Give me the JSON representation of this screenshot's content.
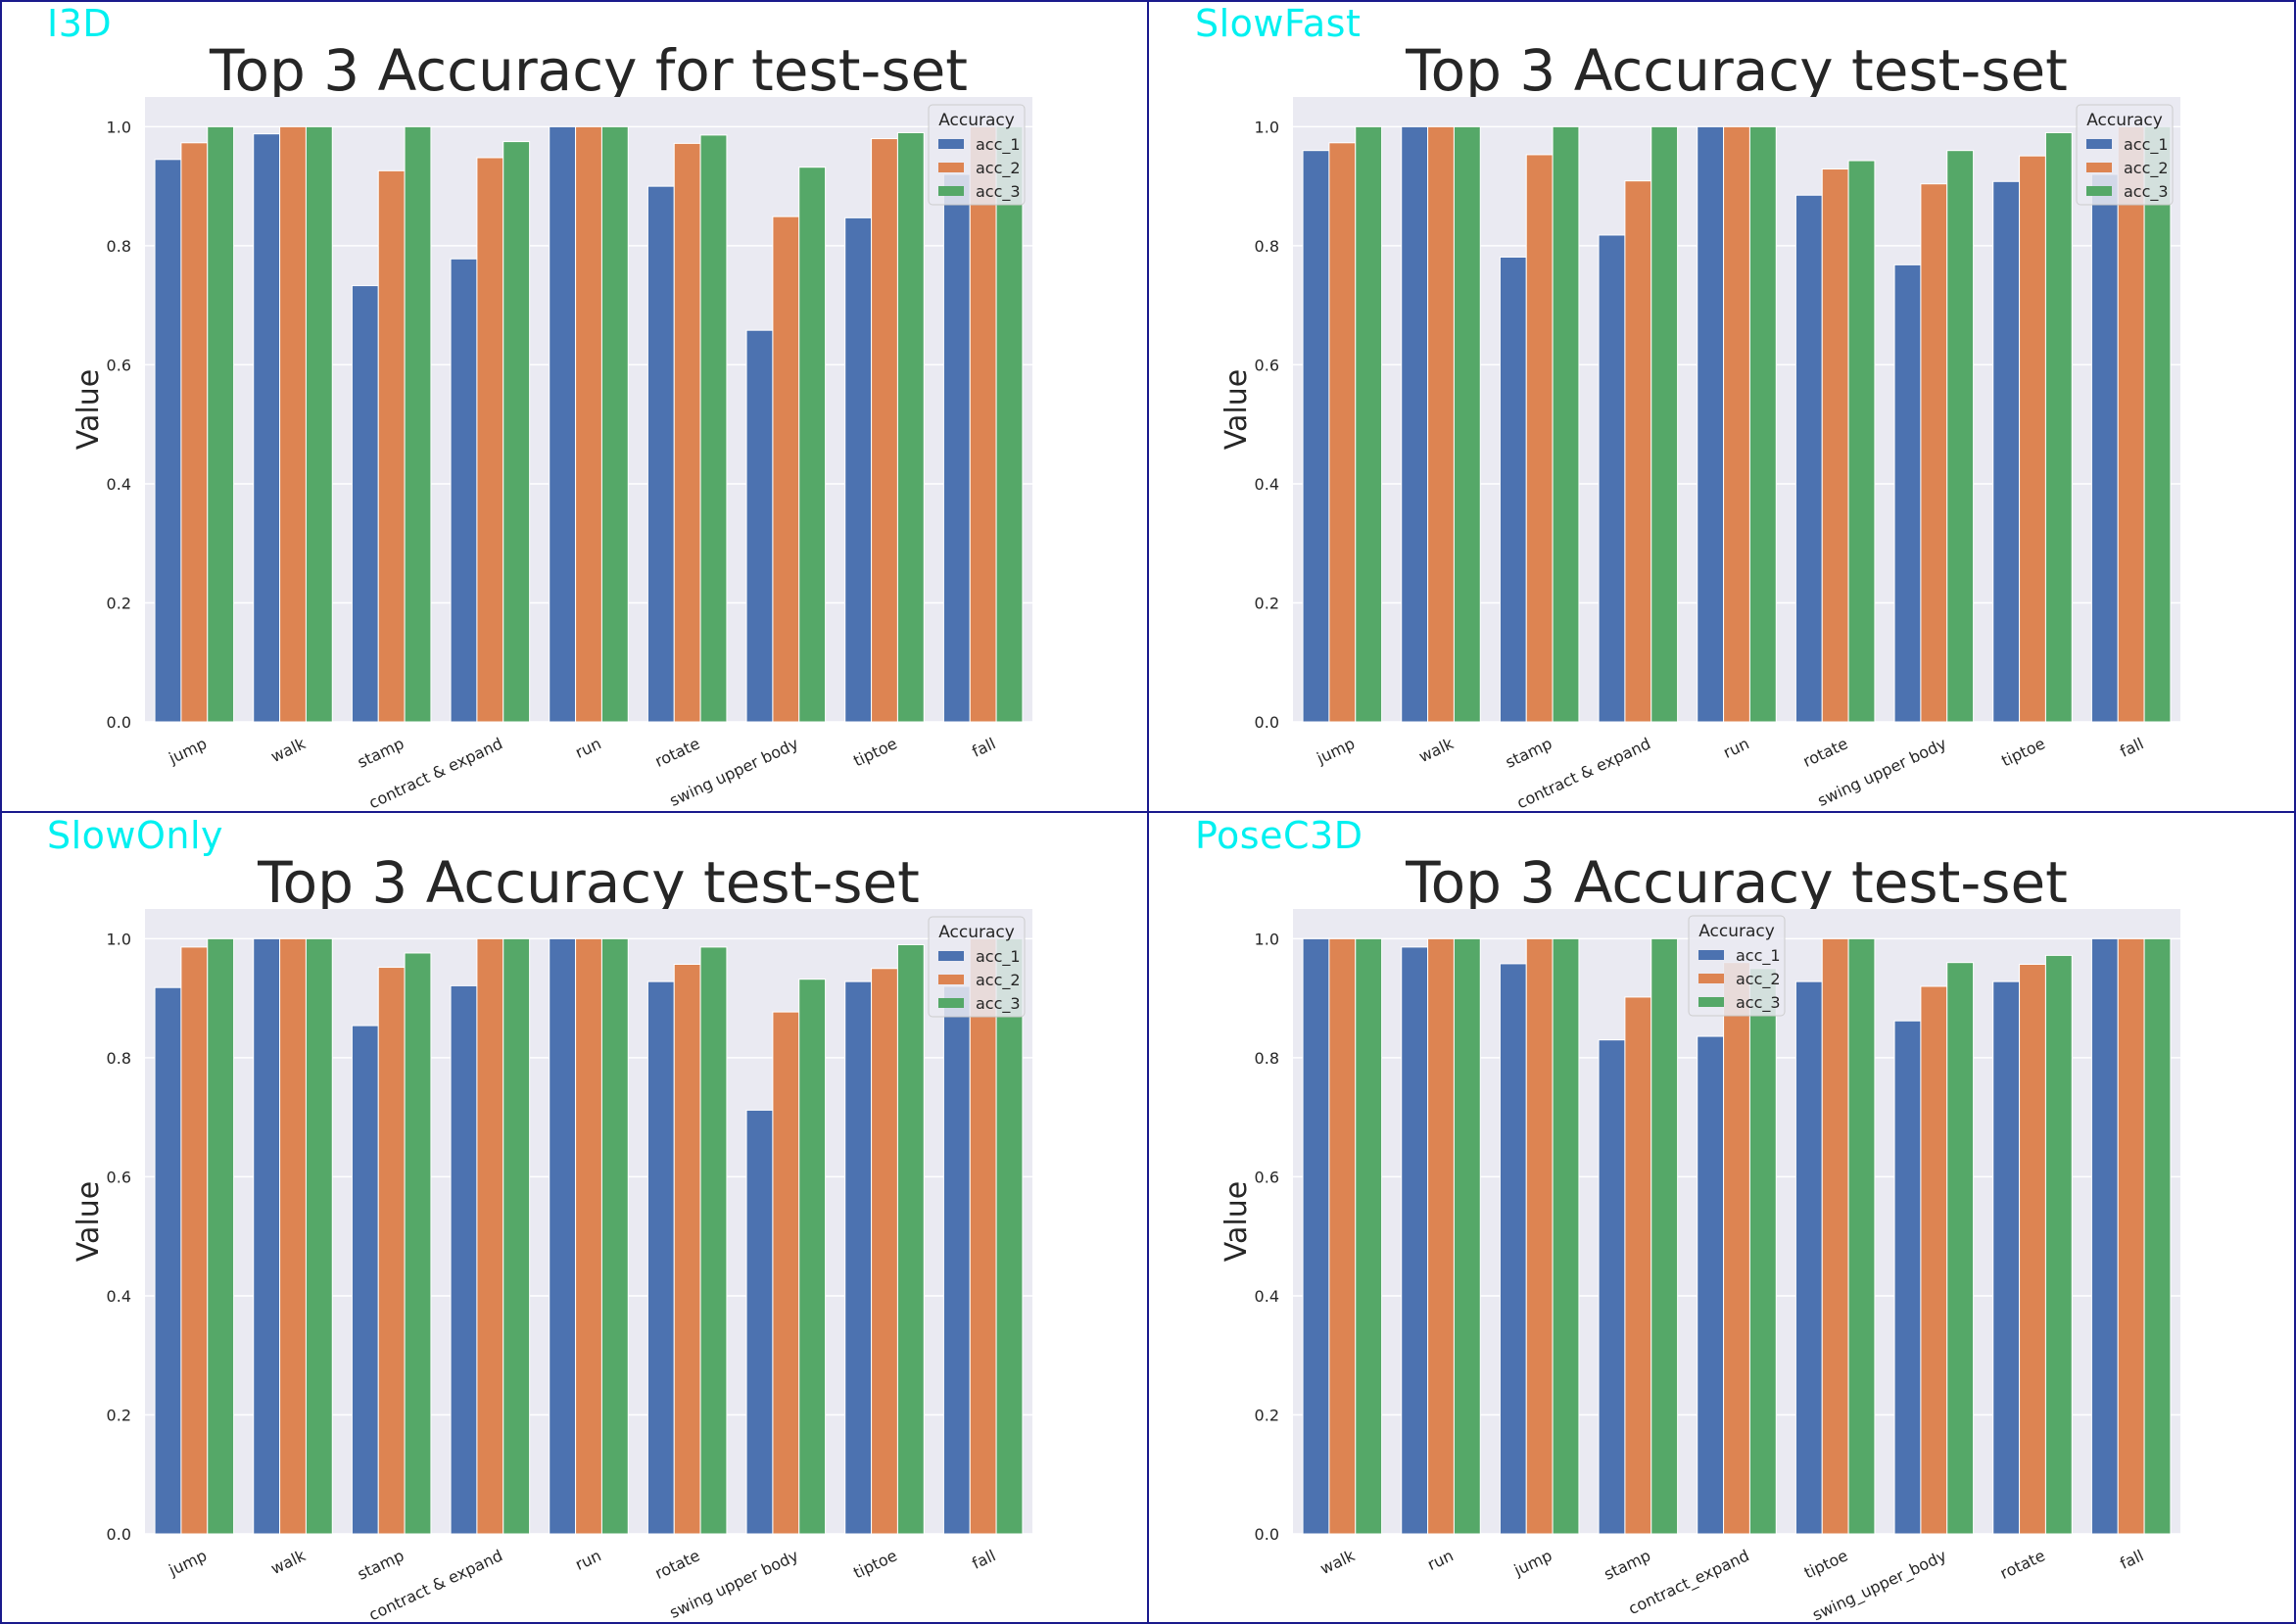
{
  "colors": {
    "tag": "#00f0f0",
    "plot_bg": "#eaeaf2",
    "grid": "#ffffff",
    "divider": "#1a1a8c",
    "series": [
      "#4c72b0",
      "#dd8452",
      "#55a868"
    ]
  },
  "panels": [
    {
      "tag": "I3D",
      "chart_data": {
        "type": "bar",
        "title": "Top 3 Accuracy for test-set",
        "xlabel": "",
        "ylabel": "Value",
        "ylim": [
          0,
          1.05
        ],
        "yticks": [
          "0.0",
          "0.2",
          "0.4",
          "0.6",
          "0.8",
          "1.0"
        ],
        "grid": true,
        "legend": {
          "title": "Accuracy",
          "placement": "top-right"
        },
        "categories": [
          "jump",
          "walk",
          "stamp",
          "contract & expand",
          "run",
          "rotate",
          "swing upper body",
          "tiptoe",
          "fall"
        ],
        "series": [
          {
            "name": "acc_1",
            "values": [
              0.945,
              0.988,
              0.733,
              0.778,
              1.0,
              0.9,
              0.658,
              0.847,
              0.92
            ]
          },
          {
            "name": "acc_2",
            "values": [
              0.973,
              1.0,
              0.926,
              0.948,
              1.0,
              0.972,
              0.849,
              0.98,
              1.0
            ]
          },
          {
            "name": "acc_3",
            "values": [
              1.0,
              1.0,
              1.0,
              0.975,
              1.0,
              0.986,
              0.932,
              0.99,
              1.0
            ]
          }
        ]
      }
    },
    {
      "tag": "SlowFast",
      "chart_data": {
        "type": "bar",
        "title": "Top 3 Accuracy test-set",
        "xlabel": "",
        "ylabel": "Value",
        "ylim": [
          0,
          1.05
        ],
        "yticks": [
          "0.0",
          "0.2",
          "0.4",
          "0.6",
          "0.8",
          "1.0"
        ],
        "grid": true,
        "legend": {
          "title": "Accuracy",
          "placement": "top-right"
        },
        "categories": [
          "jump",
          "walk",
          "stamp",
          "contract & expand",
          "run",
          "rotate",
          "swing upper body",
          "tiptoe",
          "fall"
        ],
        "series": [
          {
            "name": "acc_1",
            "values": [
              0.96,
              1.0,
              0.781,
              0.818,
              1.0,
              0.885,
              0.768,
              0.908,
              0.92
            ]
          },
          {
            "name": "acc_2",
            "values": [
              0.973,
              1.0,
              0.953,
              0.909,
              1.0,
              0.929,
              0.904,
              0.951,
              1.0
            ]
          },
          {
            "name": "acc_3",
            "values": [
              1.0,
              1.0,
              1.0,
              1.0,
              1.0,
              0.943,
              0.96,
              0.99,
              1.0
            ]
          }
        ]
      }
    },
    {
      "tag": "SlowOnly",
      "chart_data": {
        "type": "bar",
        "title": "Top 3 Accuracy test-set",
        "xlabel": "",
        "ylabel": "Value",
        "ylim": [
          0,
          1.05
        ],
        "yticks": [
          "0.0",
          "0.2",
          "0.4",
          "0.6",
          "0.8",
          "1.0"
        ],
        "grid": true,
        "legend": {
          "title": "Accuracy",
          "placement": "top-right"
        },
        "categories": [
          "jump",
          "walk",
          "stamp",
          "contract & expand",
          "run",
          "rotate",
          "swing upper body",
          "tiptoe",
          "fall"
        ],
        "series": [
          {
            "name": "acc_1",
            "values": [
              0.918,
              1.0,
              0.854,
              0.921,
              1.0,
              0.928,
              0.712,
              0.928,
              0.92
            ]
          },
          {
            "name": "acc_2",
            "values": [
              0.986,
              1.0,
              0.952,
              1.0,
              1.0,
              0.957,
              0.877,
              0.95,
              1.0
            ]
          },
          {
            "name": "acc_3",
            "values": [
              1.0,
              1.0,
              0.976,
              1.0,
              1.0,
              0.986,
              0.932,
              0.99,
              1.0
            ]
          }
        ]
      }
    },
    {
      "tag": "PoseC3D",
      "chart_data": {
        "type": "bar",
        "title": "Top 3 Accuracy test-set",
        "xlabel": "",
        "ylabel": "Value",
        "ylim": [
          0,
          1.05
        ],
        "yticks": [
          "0.0",
          "0.2",
          "0.4",
          "0.6",
          "0.8",
          "1.0"
        ],
        "grid": true,
        "legend": {
          "title": "Accuracy",
          "placement": "top-center"
        },
        "categories": [
          "walk",
          "run",
          "jump",
          "stamp",
          "contract_expand",
          "tiptoe",
          "swing_upper_body",
          "rotate",
          "fall"
        ],
        "series": [
          {
            "name": "acc_1",
            "values": [
              1.0,
              0.986,
              0.958,
              0.83,
              0.836,
              0.928,
              0.862,
              0.928,
              1.0
            ]
          },
          {
            "name": "acc_2",
            "values": [
              1.0,
              1.0,
              1.0,
              0.902,
              0.96,
              1.0,
              0.92,
              0.957,
              1.0
            ]
          },
          {
            "name": "acc_3",
            "values": [
              1.0,
              1.0,
              1.0,
              1.0,
              0.95,
              1.0,
              0.96,
              0.972,
              1.0
            ]
          }
        ]
      }
    }
  ]
}
